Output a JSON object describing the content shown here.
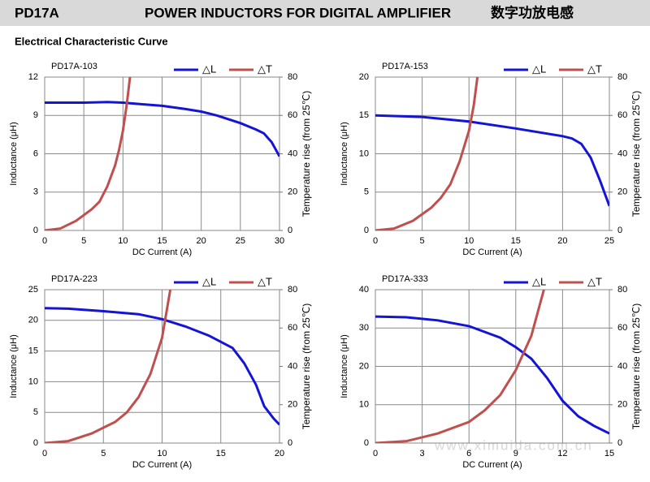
{
  "header": {
    "model": "PD17A",
    "title": "POWER INDUCTORS FOR DIGITAL AMPLIFIER",
    "title_cn": "数字功放电感",
    "subtitle": "Electrical Characteristic Curve",
    "watermark": "www.ximuida.com.cn"
  },
  "chart_data": [
    {
      "type": "line",
      "title": "PD17A-103",
      "xlabel": "DC Current (A)",
      "ylabel": "Inductance (μH)",
      "y2label": "Temperature rise (from 25℃)",
      "xlim": [
        0,
        30
      ],
      "xticks": [
        0,
        5,
        10,
        15,
        20,
        25,
        30
      ],
      "ylim": [
        0,
        12
      ],
      "yticks": [
        0,
        3,
        6,
        9,
        12
      ],
      "y2lim": [
        0,
        80
      ],
      "y2ticks": [
        0,
        20,
        40,
        60,
        80
      ],
      "grid": true,
      "legend": "top-right",
      "series": [
        {
          "name": "△L",
          "color": "#1414d8",
          "x": [
            0,
            5,
            8,
            10,
            12,
            15,
            18,
            20,
            22,
            25,
            27,
            28,
            29,
            30
          ],
          "values": [
            10,
            10,
            10.05,
            10,
            9.9,
            9.75,
            9.5,
            9.3,
            9.0,
            8.4,
            7.9,
            7.6,
            6.9,
            5.8
          ]
        },
        {
          "name": "△T",
          "color": "#c0504d",
          "axis": "y2",
          "x": [
            0,
            2,
            4,
            6,
            7,
            8,
            9,
            9.5,
            10,
            10.5,
            10.9
          ],
          "values": [
            0,
            1,
            5,
            11,
            15,
            23,
            34,
            42,
            52,
            66,
            80
          ]
        }
      ]
    },
    {
      "type": "line",
      "title": "PD17A-153",
      "xlabel": "DC Current (A)",
      "ylabel": "Inductance (μH)",
      "y2label": "Temperature rise (from 25℃)",
      "xlim": [
        0,
        25
      ],
      "xticks": [
        0,
        5,
        10,
        15,
        20,
        25
      ],
      "ylim": [
        0,
        20
      ],
      "yticks": [
        0,
        5,
        10,
        15,
        20
      ],
      "y2lim": [
        0,
        80
      ],
      "y2ticks": [
        0,
        20,
        40,
        60,
        80
      ],
      "grid": true,
      "legend": "top-right",
      "series": [
        {
          "name": "△L",
          "color": "#1414d8",
          "x": [
            0,
            5,
            10,
            15,
            20,
            21,
            22,
            23,
            24,
            25
          ],
          "values": [
            15,
            14.8,
            14.2,
            13.3,
            12.3,
            12,
            11.3,
            9.5,
            6.5,
            3.2
          ]
        },
        {
          "name": "△T",
          "color": "#c0504d",
          "axis": "y2",
          "x": [
            0,
            2,
            4,
            6,
            7,
            8,
            9,
            10,
            10.5,
            10.9
          ],
          "values": [
            0,
            1,
            5,
            12,
            17,
            24,
            36,
            52,
            65,
            80
          ]
        }
      ]
    },
    {
      "type": "line",
      "title": "PD17A-223",
      "xlabel": "DC Current (A)",
      "ylabel": "Inductance (μH)",
      "y2label": "Temperature rise (from 25℃)",
      "xlim": [
        0,
        20
      ],
      "xticks": [
        0,
        5,
        10,
        15,
        20
      ],
      "ylim": [
        0,
        25
      ],
      "yticks": [
        0,
        5,
        10,
        15,
        20,
        25
      ],
      "y2lim": [
        0,
        80
      ],
      "y2ticks": [
        0,
        20,
        40,
        60,
        80
      ],
      "grid": true,
      "legend": "top-right",
      "series": [
        {
          "name": "△L",
          "color": "#1414d8",
          "x": [
            0,
            2,
            5,
            8,
            10,
            12,
            14,
            16,
            17,
            18,
            18.7,
            19.5,
            20
          ],
          "values": [
            22,
            21.9,
            21.5,
            21,
            20.2,
            19,
            17.5,
            15.5,
            13,
            9.5,
            6,
            4,
            3
          ]
        },
        {
          "name": "△T",
          "color": "#c0504d",
          "axis": "y2",
          "x": [
            0,
            2,
            4,
            6,
            7,
            8,
            9,
            10,
            10.7
          ],
          "values": [
            0,
            1,
            5,
            11,
            16,
            24,
            36,
            55,
            80
          ]
        }
      ]
    },
    {
      "type": "line",
      "title": "PD17A-333",
      "xlabel": "DC Current (A)",
      "ylabel": "Inductance (μH)",
      "y2label": "Temperature rise (from 25℃)",
      "xlim": [
        0,
        15
      ],
      "xticks": [
        0,
        3,
        6,
        9,
        12,
        15
      ],
      "ylim": [
        0,
        40
      ],
      "yticks": [
        0,
        10,
        20,
        30,
        40
      ],
      "y2lim": [
        0,
        80
      ],
      "y2ticks": [
        0,
        20,
        40,
        60,
        80
      ],
      "grid": true,
      "legend": "top-right",
      "series": [
        {
          "name": "△L",
          "color": "#1414d8",
          "x": [
            0,
            2,
            4,
            6,
            8,
            9,
            10,
            11,
            12,
            13,
            14,
            15
          ],
          "values": [
            33,
            32.8,
            32,
            30.5,
            27.5,
            25,
            22,
            17,
            11,
            7,
            4.5,
            2.5
          ]
        },
        {
          "name": "△T",
          "color": "#c0504d",
          "axis": "y2",
          "x": [
            0,
            2,
            4,
            6,
            7,
            8,
            9,
            10,
            10.8
          ],
          "values": [
            0,
            1,
            5,
            11,
            17,
            25,
            38,
            56,
            80
          ]
        }
      ]
    }
  ]
}
